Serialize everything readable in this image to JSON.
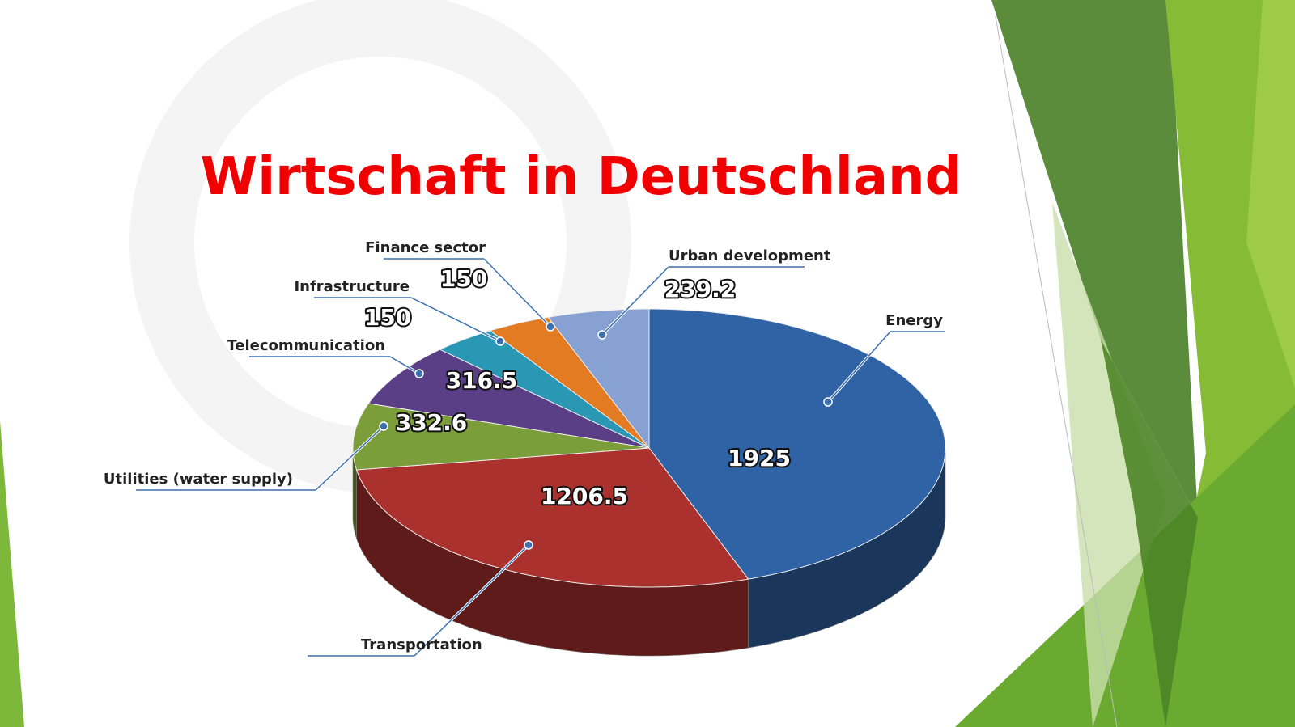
{
  "chart_data": {
    "type": "pie3d",
    "title": "Wirtschaft in Deutschland",
    "categories": [
      "Energy",
      "Transportation",
      "Utilities (water supply)",
      "Telecommunication",
      "Infrastructure",
      "Finance sector",
      "Urban development"
    ],
    "values": [
      1925,
      1206.5,
      332.6,
      316.5,
      150,
      150,
      239.2
    ],
    "colors": [
      "#2f63a6",
      "#ab312e",
      "#7b9d3a",
      "#5b3f86",
      "#2a98b4",
      "#e27b22",
      "#87a2d2"
    ]
  }
}
